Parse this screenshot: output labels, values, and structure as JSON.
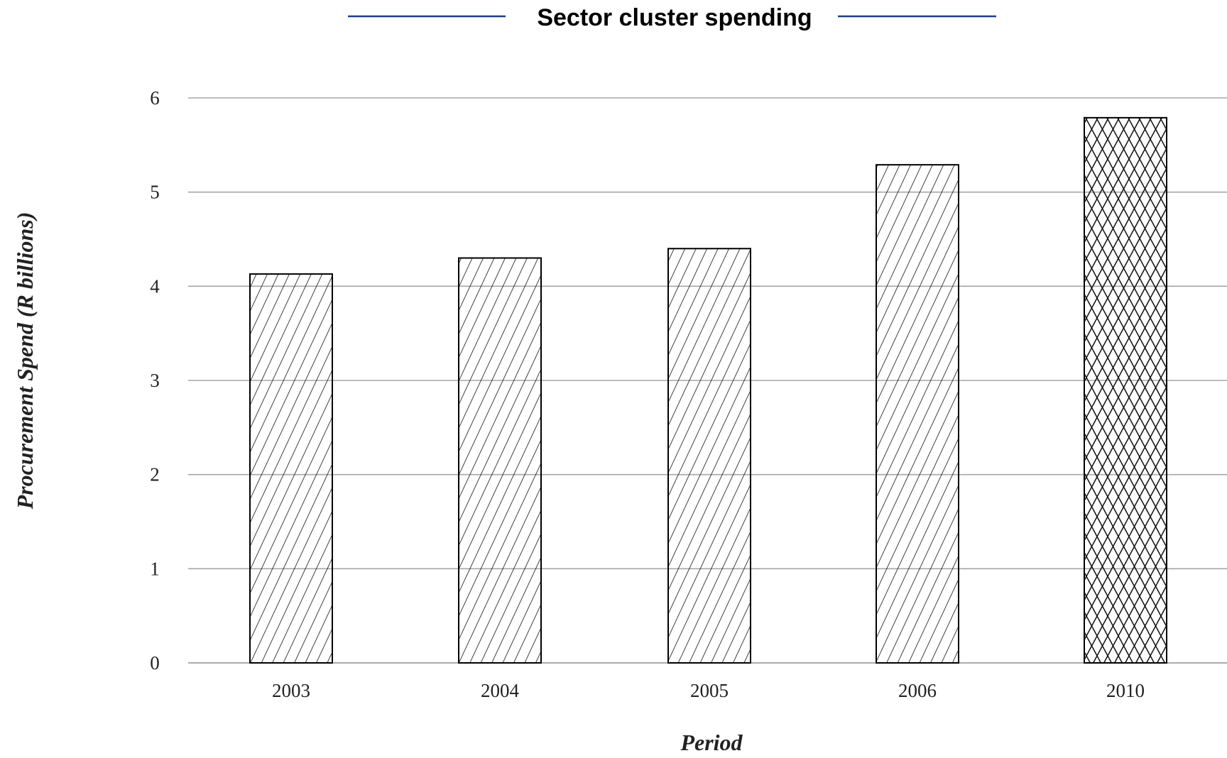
{
  "chart_data": {
    "type": "bar",
    "title": "Sector cluster spending",
    "xlabel": "Period",
    "ylabel": "Procurement Spend (R billions)",
    "categories": [
      "2003",
      "2004",
      "2005",
      "2006",
      "2010"
    ],
    "values": [
      4.13,
      4.3,
      4.4,
      5.29,
      5.79
    ],
    "patterns": [
      "diagonal-hatch",
      "diagonal-hatch",
      "diagonal-hatch",
      "diagonal-hatch",
      "cross-hatch"
    ],
    "ylim": [
      0,
      6
    ],
    "yticks": [
      "0",
      "1",
      "2",
      "3",
      "4",
      "5",
      "6"
    ],
    "grid": true,
    "legend": "none"
  },
  "colors": {
    "title_rule": "#1f3f8a",
    "gridline": "#a6a6a6",
    "bar_outline": "#000000",
    "bar_fill": "#ffffff",
    "hatch": "#111111"
  }
}
